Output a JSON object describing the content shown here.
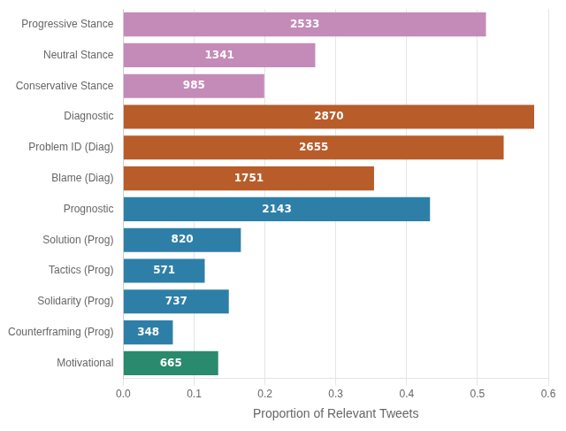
{
  "chart_data": {
    "type": "bar",
    "orientation": "horizontal",
    "x_label": "Proportion of Relevant Tweets",
    "categories": [
      "Progressive Stance",
      "Neutral Stance",
      "Conservative Stance",
      "Diagnostic",
      "Problem ID (Diag)",
      "Blame (Diag)",
      "Prognostic",
      "Solution (Prog)",
      "Tactics (Prog)",
      "Solidarity (Prog)",
      "Counterframing (Prog)",
      "Motivational"
    ],
    "values": [
      0.512,
      0.271,
      0.199,
      0.58,
      0.537,
      0.354,
      0.433,
      0.166,
      0.115,
      0.149,
      0.07,
      0.134
    ],
    "counts": [
      2533,
      1341,
      985,
      2870,
      2655,
      1751,
      2143,
      820,
      571,
      737,
      348,
      665
    ],
    "colors": [
      "#C48BB8",
      "#C48BB8",
      "#C48BB8",
      "#B85C2A",
      "#B85C2A",
      "#B85C2A",
      "#2E7FA8",
      "#2E7FA8",
      "#2E7FA8",
      "#2E7FA8",
      "#2E7FA8",
      "#2A8A6E"
    ],
    "xlim": [
      0.0,
      0.6
    ],
    "xticks": [
      {
        "value": 0.0,
        "label": "0.0"
      },
      0.1,
      0.2,
      0.3,
      0.4,
      0.5,
      0.6
    ],
    "grid": true
  }
}
